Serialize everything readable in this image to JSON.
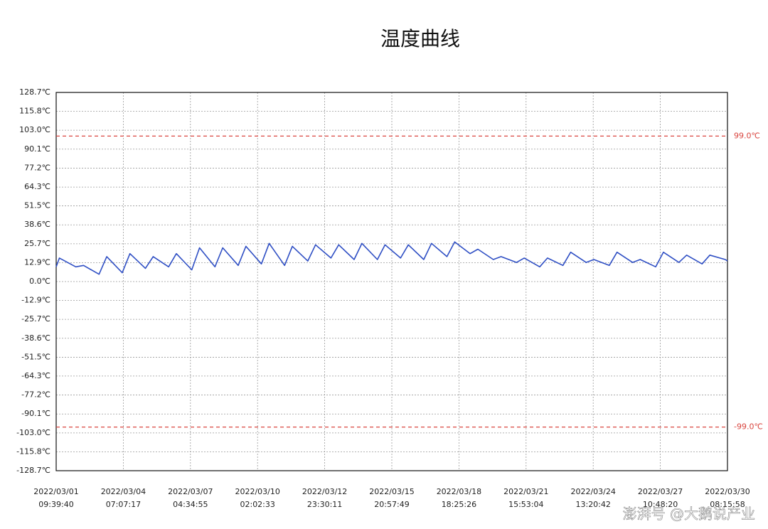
{
  "chart_data": {
    "type": "line",
    "title": "温度曲线",
    "color": "#2f4fc4",
    "x": [
      "2022-03-01T09:39:40",
      "2022-03-01T13:00",
      "2022-03-02T06:00",
      "2022-03-02T14:00",
      "2022-03-03T06:00",
      "2022-03-03T14:00",
      "2022-03-04T06:00",
      "2022-03-04T14:00",
      "2022-03-05T06:00",
      "2022-03-05T14:00",
      "2022-03-06T06:00",
      "2022-03-06T14:00",
      "2022-03-07T06:00",
      "2022-03-07T14:00",
      "2022-03-08T06:00",
      "2022-03-08T14:00",
      "2022-03-09T06:00",
      "2022-03-09T14:00",
      "2022-03-10T06:00",
      "2022-03-10T14:00",
      "2022-03-11T06:00",
      "2022-03-11T14:00",
      "2022-03-12T06:00",
      "2022-03-12T14:00",
      "2022-03-13T06:00",
      "2022-03-13T14:00",
      "2022-03-14T06:00",
      "2022-03-14T14:00",
      "2022-03-15T06:00",
      "2022-03-15T14:00",
      "2022-03-16T06:00",
      "2022-03-16T14:00",
      "2022-03-17T06:00",
      "2022-03-17T14:00",
      "2022-03-18T06:00",
      "2022-03-18T14:00",
      "2022-03-19T06:00",
      "2022-03-19T14:00",
      "2022-03-20T06:00",
      "2022-03-20T14:00",
      "2022-03-21T06:00",
      "2022-03-21T14:00",
      "2022-03-22T06:00",
      "2022-03-22T14:00",
      "2022-03-23T06:00",
      "2022-03-23T14:00",
      "2022-03-24T06:00",
      "2022-03-24T14:00",
      "2022-03-25T06:00",
      "2022-03-25T14:00",
      "2022-03-26T06:00",
      "2022-03-26T14:00",
      "2022-03-27T06:00",
      "2022-03-27T14:00",
      "2022-03-28T06:00",
      "2022-03-28T14:00",
      "2022-03-29T06:00",
      "2022-03-29T14:00",
      "2022-03-30T06:00",
      "2022-03-30T08:15:58"
    ],
    "values": [
      10,
      16,
      10,
      11,
      5,
      17,
      6,
      19,
      9,
      17,
      10,
      19,
      8,
      23,
      10,
      23,
      11,
      24,
      12,
      26,
      11,
      24,
      14,
      25,
      16,
      25,
      15,
      26,
      15,
      25,
      16,
      25,
      15,
      26,
      17,
      27,
      19,
      22,
      15,
      17,
      13,
      16,
      10,
      16,
      11,
      20,
      13,
      15,
      11,
      20,
      13,
      15,
      10,
      20,
      13,
      18,
      12,
      18,
      15,
      14
    ],
    "xlim": [
      "2022-03-01T09:39:40",
      "2022-03-30T08:15:58"
    ],
    "xticks": [
      {
        "value": "2022-03-01T09:39:40",
        "label": [
          "2022/03/01",
          "09:39:40"
        ]
      },
      {
        "value": "2022-03-04T07:07:17",
        "label": [
          "2022/03/04",
          "07:07:17"
        ]
      },
      {
        "value": "2022-03-07T04:34:55",
        "label": [
          "2022/03/07",
          "04:34:55"
        ]
      },
      {
        "value": "2022-03-10T02:02:33",
        "label": [
          "2022/03/10",
          "02:02:33"
        ]
      },
      {
        "value": "2022-03-12T23:30:11",
        "label": [
          "2022/03/12",
          "23:30:11"
        ]
      },
      {
        "value": "2022-03-15T20:57:49",
        "label": [
          "2022/03/15",
          "20:57:49"
        ]
      },
      {
        "value": "2022-03-18T18:25:26",
        "label": [
          "2022/03/18",
          "18:25:26"
        ]
      },
      {
        "value": "2022-03-21T15:53:04",
        "label": [
          "2022/03/21",
          "15:53:04"
        ]
      },
      {
        "value": "2022-03-24T13:20:42",
        "label": [
          "2022/03/24",
          "13:20:42"
        ]
      },
      {
        "value": "2022-03-27T10:48:20",
        "label": [
          "2022/03/27",
          "10:48:20"
        ]
      },
      {
        "value": "2022-03-30T08:15:58",
        "label": [
          "2022/03/30",
          "08:15:58"
        ]
      }
    ],
    "ylim": [
      -128.7,
      128.7
    ],
    "yticks": [
      {
        "value": 128.7,
        "label": "128.7℃"
      },
      {
        "value": 115.8,
        "label": "115.8℃"
      },
      {
        "value": 103.0,
        "label": "103.0℃"
      },
      {
        "value": 90.1,
        "label": "90.1℃"
      },
      {
        "value": 77.2,
        "label": "77.2℃"
      },
      {
        "value": 64.3,
        "label": "64.3℃"
      },
      {
        "value": 51.5,
        "label": "51.5℃"
      },
      {
        "value": 38.6,
        "label": "38.6℃"
      },
      {
        "value": 25.7,
        "label": "25.7℃"
      },
      {
        "value": 12.9,
        "label": "12.9℃"
      },
      {
        "value": 0.0,
        "label": "0.0℃"
      },
      {
        "value": -12.9,
        "label": "-12.9℃"
      },
      {
        "value": -25.7,
        "label": "-25.7℃"
      },
      {
        "value": -38.6,
        "label": "-38.6℃"
      },
      {
        "value": -51.5,
        "label": "-51.5℃"
      },
      {
        "value": -64.3,
        "label": "-64.3℃"
      },
      {
        "value": -77.2,
        "label": "-77.2℃"
      },
      {
        "value": -90.1,
        "label": "-90.1℃"
      },
      {
        "value": -103.0,
        "label": "-103.0℃"
      },
      {
        "value": -115.8,
        "label": "-115.8℃"
      },
      {
        "value": -128.7,
        "label": "-128.7℃"
      }
    ],
    "grid": true,
    "thresholds": [
      {
        "value": 99.0,
        "label": "99.0℃",
        "color": "#d9443e"
      },
      {
        "value": -99.0,
        "label": "-99.0℃",
        "color": "#d9443e"
      }
    ],
    "watermark": "澎湃号 @大鹅说产业"
  }
}
